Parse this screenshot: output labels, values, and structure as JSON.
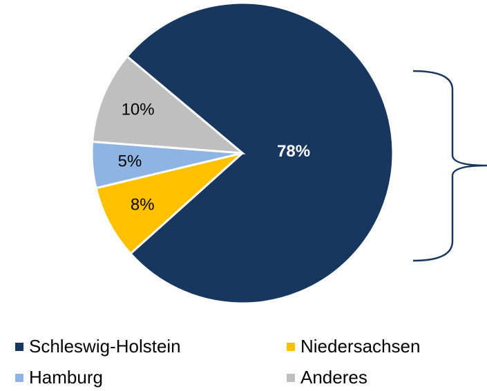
{
  "chart_data": {
    "type": "pie",
    "categories": [
      "Schleswig-Holstein",
      "Niedersachsen",
      "Hamburg",
      "Anderes"
    ],
    "values": [
      78,
      8,
      5,
      10
    ],
    "value_labels": [
      "78%",
      "8%",
      "5%",
      "10%"
    ],
    "colors": [
      "#17375e",
      "#ffc000",
      "#8eb4e3",
      "#bfbfbf"
    ],
    "legend": "bottom"
  }
}
